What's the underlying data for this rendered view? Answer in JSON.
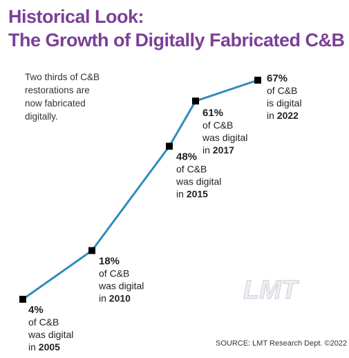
{
  "header": {
    "title_line1": "Historical Look:",
    "title_line2": "The Growth of Digitally Fabricated C&B"
  },
  "note": {
    "line1": "Two thirds of C&B",
    "line2": "restorations are",
    "line3": "now fabricated",
    "line4": "digitally."
  },
  "colors": {
    "line": "#2f8bbf",
    "marker": "#000000",
    "title": "#7b3f98"
  },
  "chart_data": {
    "type": "line",
    "x": [
      2005,
      2010,
      2015,
      2017,
      2022
    ],
    "values": [
      4,
      18,
      48,
      61,
      67
    ],
    "unit": "%",
    "grid": false,
    "labels": [
      {
        "pct": "4%",
        "line1": "of C&B",
        "line2": "was digital",
        "line3_prefix": "",
        "line3_year": "2005"
      },
      {
        "pct": "18%",
        "line1": "of C&B",
        "line2": "was digital",
        "line3_prefix": "",
        "line3_year": "2010"
      },
      {
        "pct": "48%",
        "line1": "of C&B",
        "line2": "was digital",
        "line3_prefix": "",
        "line3_year": "2015"
      },
      {
        "pct": "61%",
        "line1": "of C&B",
        "line2": "was digital",
        "line3_prefix": "",
        "line3_year": "2017"
      },
      {
        "pct": "67%",
        "line1": "of C&B",
        "line2": "is digital",
        "line3_prefix": "",
        "line3_year": "2022"
      }
    ]
  },
  "logo": {
    "text": "LMT"
  },
  "source": {
    "text": "SOURCE: LMT Research Dept. ©2022"
  }
}
